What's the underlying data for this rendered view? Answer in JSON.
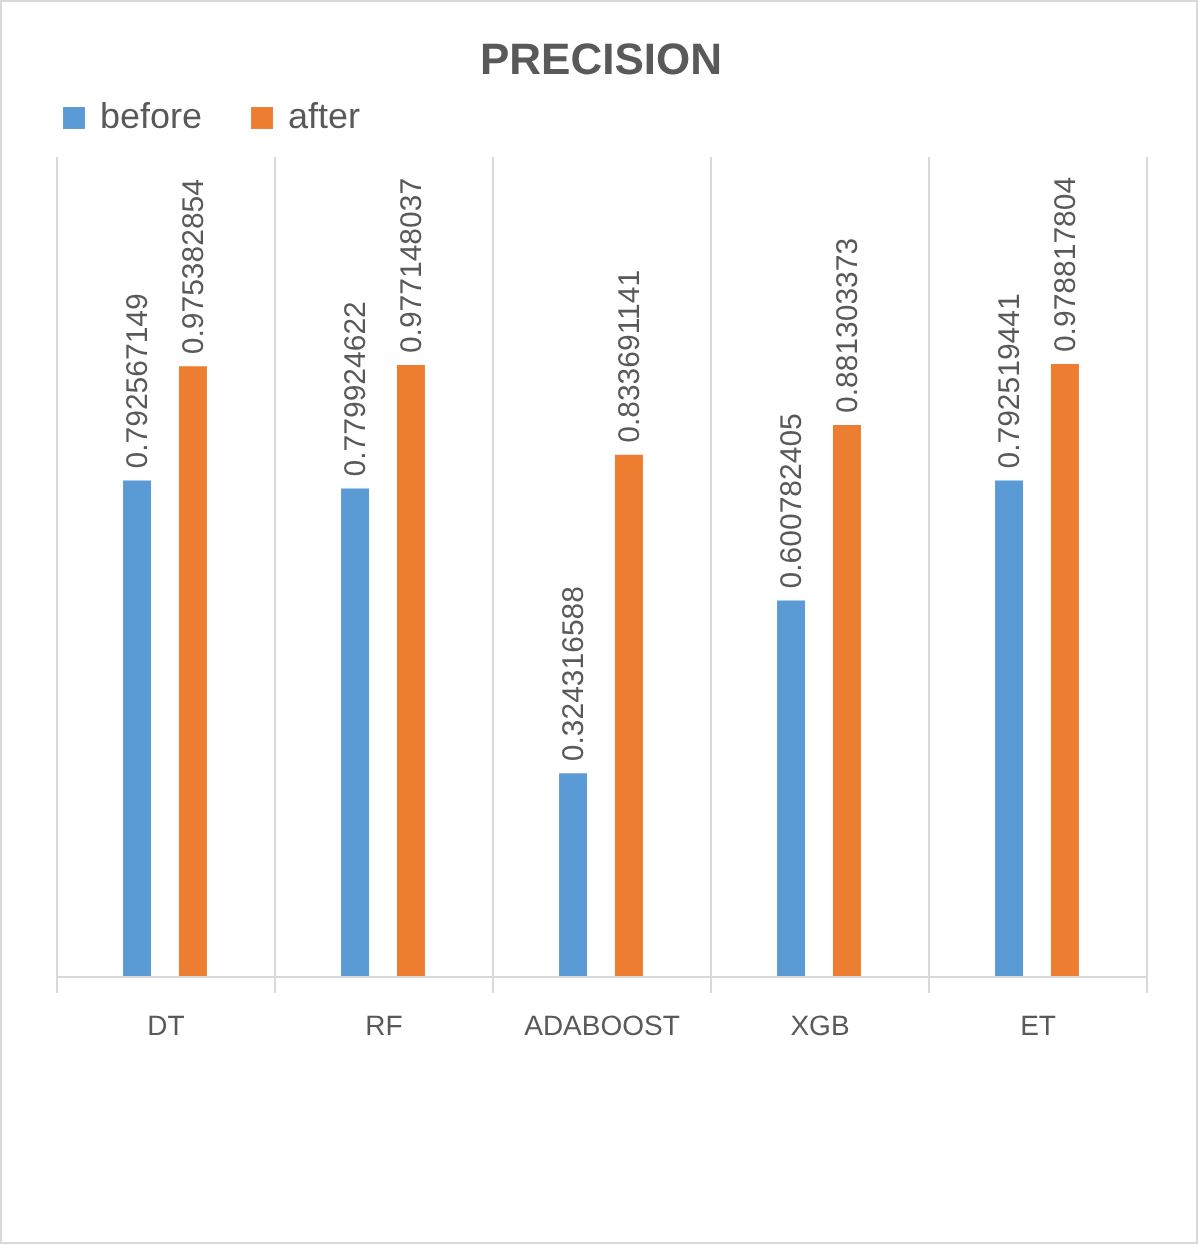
{
  "chart_data": {
    "type": "bar",
    "title": "PRECISION",
    "categories": [
      "DT",
      "RF",
      "ADABOOST",
      "XGB",
      "ET"
    ],
    "series": [
      {
        "name": "before",
        "color": "#5b9bd5",
        "values": [
          0.792567149,
          0.779924622,
          0.324316588,
          0.600782405,
          0.792519441
        ]
      },
      {
        "name": "after",
        "color": "#ed7d31",
        "values": [
          0.975382854,
          0.977148037,
          0.833691141,
          0.881303373,
          0.978817804
        ]
      }
    ],
    "data_labels": true,
    "legend": "top",
    "grid": "x"
  }
}
